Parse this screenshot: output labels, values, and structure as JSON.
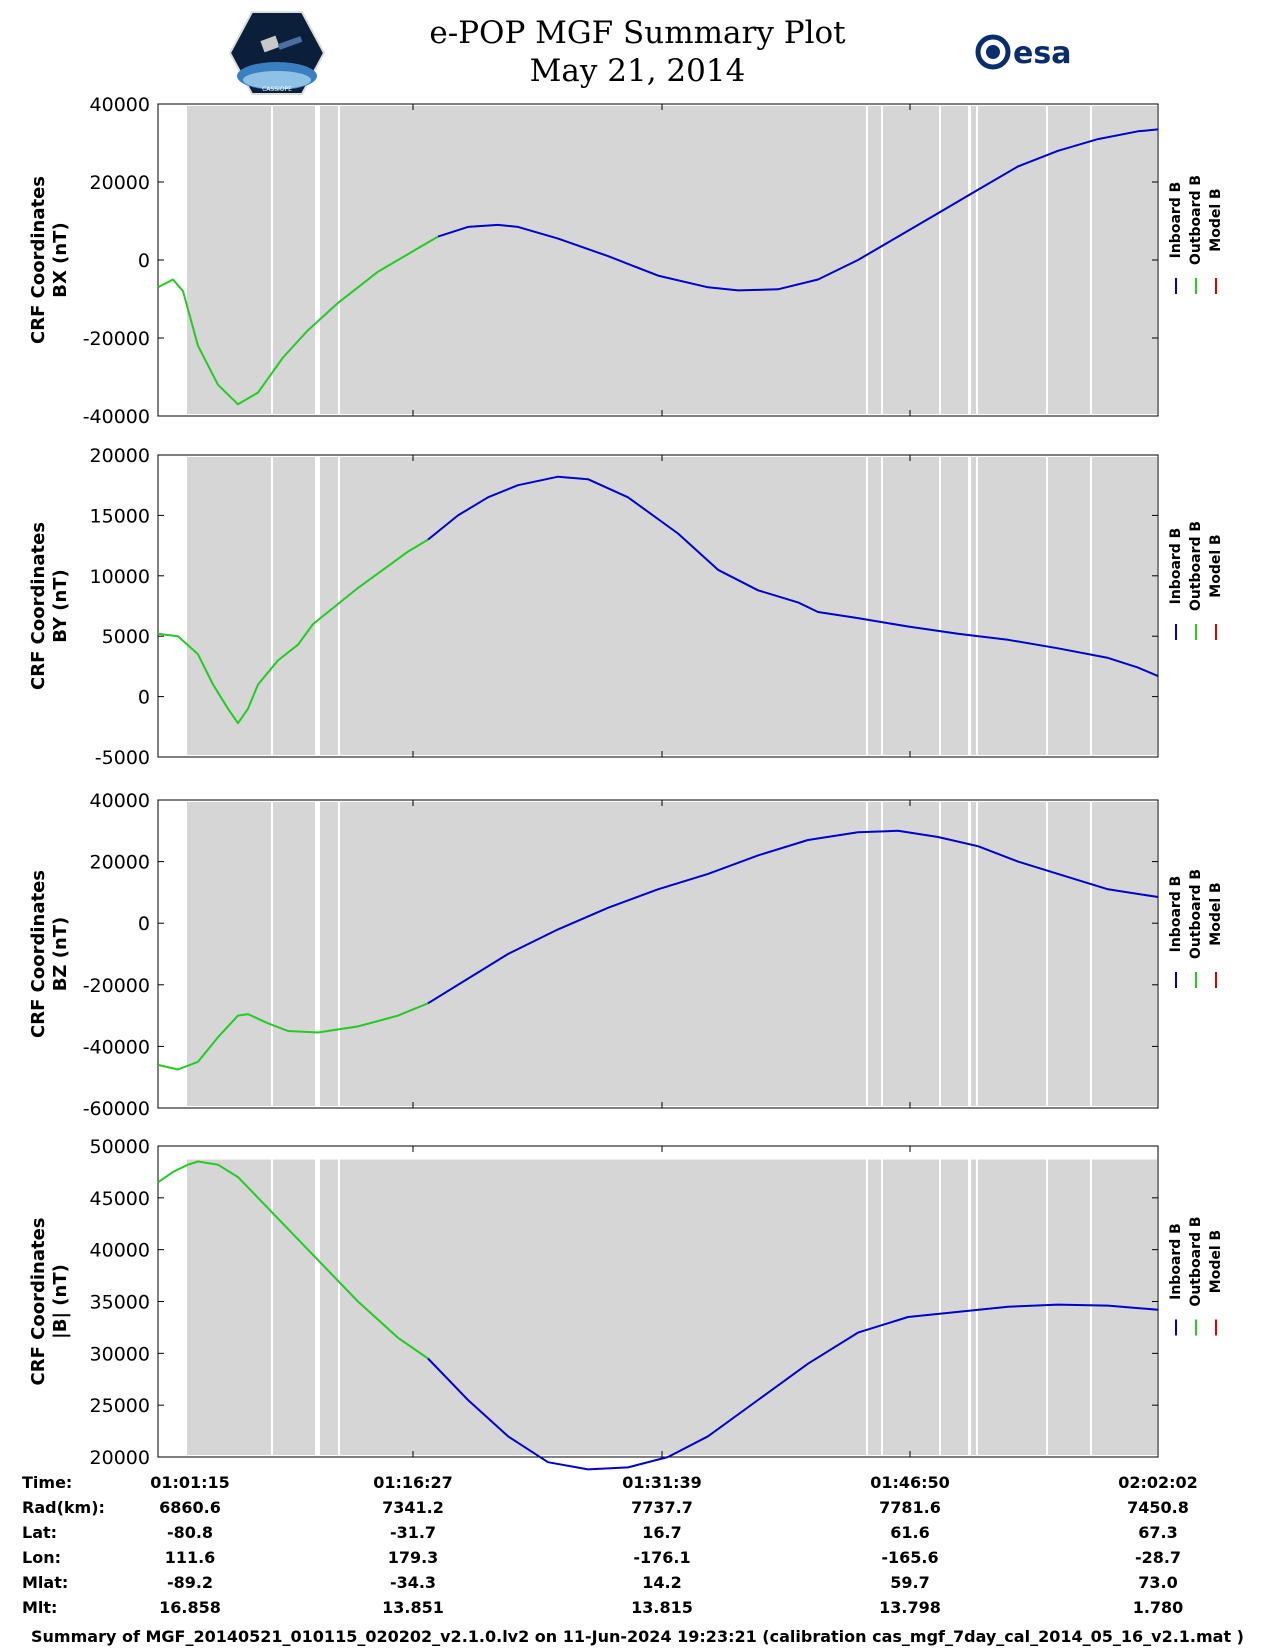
{
  "header": {
    "title_line1": "e-POP MGF Summary Plot",
    "title_line2": "May 21, 2014",
    "logo_left_text": "CASSIOPE",
    "logo_right_text": "esa"
  },
  "colors": {
    "inboard": "#0000cc",
    "outboard": "#22cc22",
    "model": "#dd0000",
    "shade": "#d6d6d6"
  },
  "chart_data": [
    {
      "type": "line",
      "id": "bx",
      "ylabel": [
        "CRF Coordinates",
        "BX (nT)"
      ],
      "ylim": [
        -40000,
        40000
      ],
      "yticks": [
        40000,
        20000,
        0,
        -20000,
        -40000
      ],
      "legend": [
        "Inboard B",
        "Outboard B",
        "Model B"
      ],
      "legend_position": "right",
      "series": [
        {
          "name": "Outboard B",
          "points": [
            [
              0,
              -7000
            ],
            [
              1.5,
              -5000
            ],
            [
              2.5,
              -8000
            ],
            [
              4,
              -22000
            ],
            [
              6,
              -32000
            ],
            [
              8,
              -37000
            ],
            [
              10,
              -34000
            ],
            [
              12.5,
              -25000
            ],
            [
              15,
              -18000
            ],
            [
              18,
              -11000
            ],
            [
              22,
              -3000
            ],
            [
              26,
              3000
            ],
            [
              28,
              6000
            ]
          ]
        },
        {
          "name": "Inboard B",
          "points": [
            [
              28,
              6000
            ],
            [
              31,
              8500
            ],
            [
              34,
              9000
            ],
            [
              36,
              8500
            ],
            [
              40,
              5500
            ],
            [
              45,
              1000
            ],
            [
              50,
              -4000
            ],
            [
              55,
              -7000
            ],
            [
              58,
              -7800
            ],
            [
              62,
              -7500
            ],
            [
              66,
              -5000
            ],
            [
              70,
              0
            ],
            [
              74,
              6000
            ],
            [
              78,
              12000
            ],
            [
              82,
              18000
            ],
            [
              86,
              24000
            ],
            [
              90,
              28000
            ],
            [
              94,
              31000
            ],
            [
              98,
              33000
            ],
            [
              100,
              33500
            ]
          ]
        }
      ]
    },
    {
      "type": "line",
      "id": "by",
      "ylabel": [
        "CRF Coordinates",
        "BY (nT)"
      ],
      "ylim": [
        -5000,
        20000
      ],
      "yticks": [
        20000,
        15000,
        10000,
        5000,
        0,
        -5000
      ],
      "legend": [
        "Inboard B",
        "Outboard B",
        "Model B"
      ],
      "legend_position": "right",
      "series": [
        {
          "name": "Outboard B",
          "points": [
            [
              0,
              5200
            ],
            [
              2,
              5000
            ],
            [
              4,
              3500
            ],
            [
              5.5,
              1000
            ],
            [
              7,
              -1000
            ],
            [
              8,
              -2200
            ],
            [
              9,
              -1000
            ],
            [
              10,
              1000
            ],
            [
              12,
              3000
            ],
            [
              14,
              4300
            ],
            [
              15.5,
              6000
            ],
            [
              20,
              9000
            ],
            [
              25,
              12000
            ],
            [
              27,
              13000
            ]
          ]
        },
        {
          "name": "Inboard B",
          "points": [
            [
              27,
              13000
            ],
            [
              30,
              15000
            ],
            [
              33,
              16500
            ],
            [
              36,
              17500
            ],
            [
              40,
              18200
            ],
            [
              43,
              18000
            ],
            [
              47,
              16500
            ],
            [
              52,
              13500
            ],
            [
              56,
              10500
            ],
            [
              60,
              8800
            ],
            [
              64,
              7800
            ],
            [
              66,
              7000
            ],
            [
              70,
              6500
            ],
            [
              75,
              5800
            ],
            [
              80,
              5200
            ],
            [
              85,
              4700
            ],
            [
              90,
              4000
            ],
            [
              95,
              3200
            ],
            [
              98,
              2400
            ],
            [
              100,
              1700
            ]
          ]
        }
      ]
    },
    {
      "type": "line",
      "id": "bz",
      "ylabel": [
        "CRF Coordinates",
        "BZ (nT)"
      ],
      "ylim": [
        -60000,
        40000
      ],
      "yticks": [
        40000,
        20000,
        0,
        -20000,
        -40000,
        -60000
      ],
      "legend": [
        "Inboard B",
        "Outboard B",
        "Model B"
      ],
      "legend_position": "right",
      "series": [
        {
          "name": "Outboard B",
          "points": [
            [
              0,
              -46000
            ],
            [
              2,
              -47500
            ],
            [
              4,
              -45000
            ],
            [
              6,
              -37000
            ],
            [
              8,
              -30000
            ],
            [
              9,
              -29500
            ],
            [
              11,
              -32500
            ],
            [
              13,
              -35000
            ],
            [
              16,
              -35500
            ],
            [
              20,
              -33500
            ],
            [
              24,
              -30000
            ],
            [
              27,
              -26000
            ]
          ]
        },
        {
          "name": "Inboard B",
          "points": [
            [
              27,
              -26000
            ],
            [
              31,
              -18000
            ],
            [
              35,
              -10000
            ],
            [
              40,
              -2000
            ],
            [
              45,
              5000
            ],
            [
              50,
              11000
            ],
            [
              55,
              16000
            ],
            [
              60,
              22000
            ],
            [
              65,
              27000
            ],
            [
              70,
              29500
            ],
            [
              74,
              30000
            ],
            [
              78,
              28000
            ],
            [
              82,
              25000
            ],
            [
              86,
              20000
            ],
            [
              90,
              16000
            ],
            [
              95,
              11000
            ],
            [
              100,
              8500
            ]
          ]
        }
      ]
    },
    {
      "type": "line",
      "id": "bmag",
      "ylabel": [
        "CRF Coordinates",
        "|B| (nT)"
      ],
      "ylim": [
        20000,
        50000
      ],
      "yticks": [
        50000,
        45000,
        40000,
        35000,
        30000,
        25000,
        20000
      ],
      "legend": [
        "Inboard B",
        "Outboard B",
        "Model B"
      ],
      "legend_position": "right",
      "series": [
        {
          "name": "Outboard B",
          "points": [
            [
              0,
              46500
            ],
            [
              1.5,
              47500
            ],
            [
              3,
              48200
            ],
            [
              4,
              48500
            ],
            [
              6,
              48200
            ],
            [
              8,
              47000
            ],
            [
              10,
              45000
            ],
            [
              12,
              43000
            ],
            [
              15,
              40000
            ],
            [
              20,
              35000
            ],
            [
              24,
              31500
            ],
            [
              27,
              29500
            ]
          ]
        },
        {
          "name": "Inboard B",
          "points": [
            [
              27,
              29500
            ],
            [
              31,
              25500
            ],
            [
              35,
              22000
            ],
            [
              39,
              19500
            ],
            [
              43,
              18800
            ],
            [
              47,
              19000
            ],
            [
              51,
              20000
            ],
            [
              55,
              22000
            ],
            [
              60,
              25500
            ],
            [
              65,
              29000
            ],
            [
              70,
              32000
            ],
            [
              75,
              33500
            ],
            [
              80,
              34000
            ],
            [
              85,
              34500
            ],
            [
              90,
              34700
            ],
            [
              95,
              34600
            ],
            [
              100,
              34200
            ]
          ]
        }
      ]
    }
  ],
  "info_table": {
    "labels": [
      "Time:",
      "Rad(km):",
      "Lat:",
      "Lon:",
      "Mlat:",
      "Mlt:"
    ],
    "columns": [
      [
        "01:01:15",
        "6860.6",
        "-80.8",
        "111.6",
        "-89.2",
        "16.858"
      ],
      [
        "01:16:27",
        "7341.2",
        "-31.7",
        "179.3",
        "-34.3",
        "13.851"
      ],
      [
        "01:31:39",
        "7737.7",
        "16.7",
        "-176.1",
        "14.2",
        "13.815"
      ],
      [
        "01:46:50",
        "7781.6",
        "61.6",
        "-165.6",
        "59.7",
        "13.798"
      ],
      [
        "02:02:02",
        "7450.8",
        "67.3",
        "-28.7",
        "73.0",
        "1.780"
      ]
    ]
  },
  "footer": "Summary of MGF_20140521_010115_020202_v2.1.0.lv2 on 11-Jun-2024 19:23:21 (calibration cas_mgf_7day_cal_2014_05_16_v2.1.mat )"
}
